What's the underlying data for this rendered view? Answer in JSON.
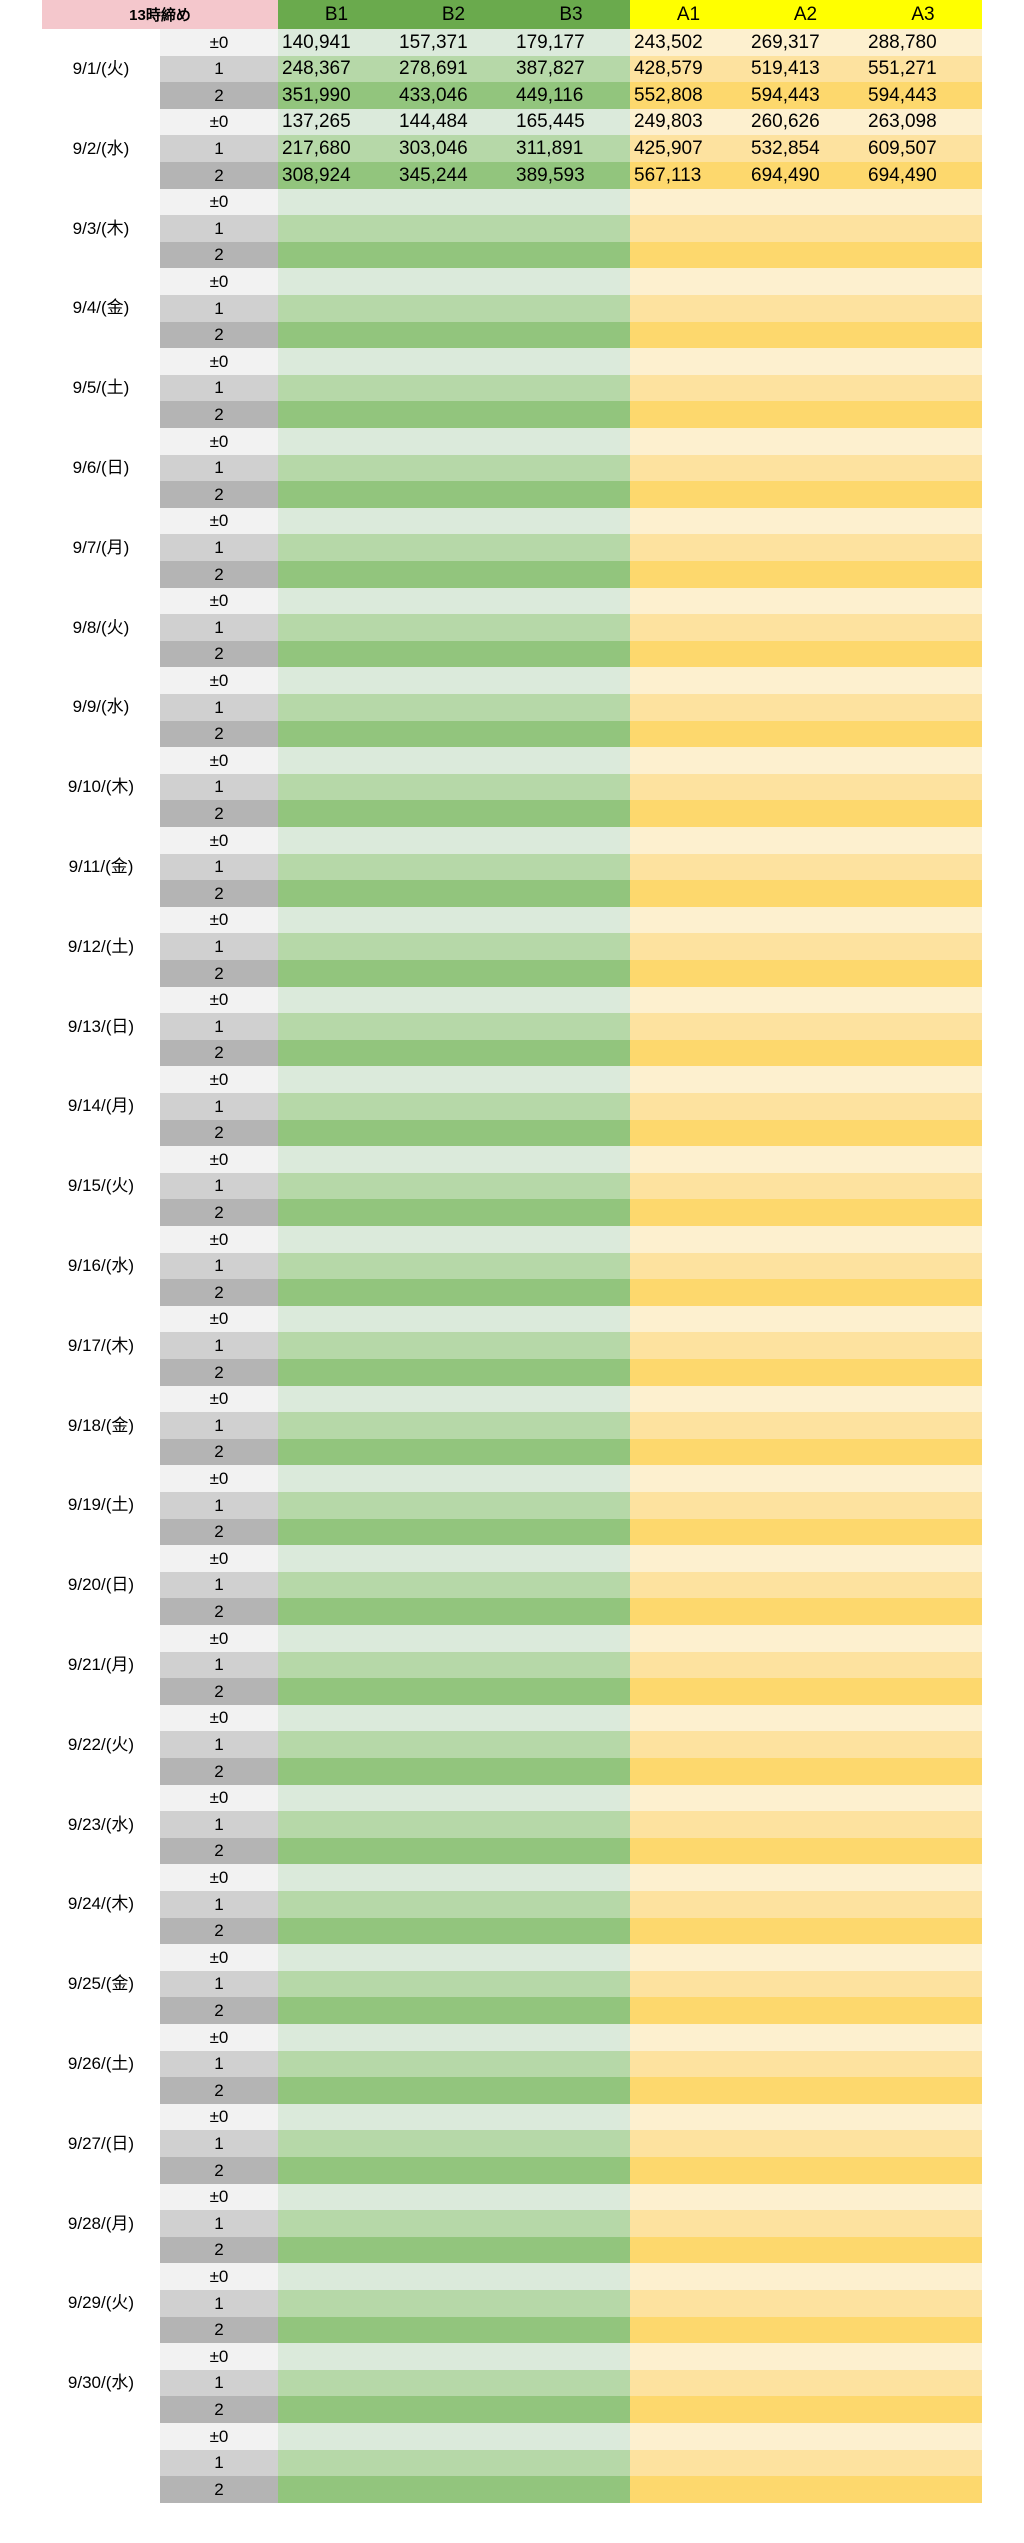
{
  "sheet": {
    "title": "13時締め",
    "headers": [
      "B1",
      "B2",
      "B3",
      "A1",
      "A2",
      "A3"
    ],
    "offsets": [
      "±0",
      "1",
      "2"
    ],
    "colors": {
      "title_bg": "#f4c7cc",
      "b_header_bg": "#6aaa4d",
      "a_header_bg": "#ffff00",
      "green_shades": [
        "#dbeadb",
        "#b6d8a8",
        "#92c57d"
      ],
      "yellow_shades": [
        "#fdf0cf",
        "#fde29f",
        "#fdd86d"
      ]
    },
    "dates": [
      {
        "label": "9/1/(火)",
        "rows": [
          [
            "140,941",
            "157,371",
            "179,177",
            "243,502",
            "269,317",
            "288,780"
          ],
          [
            "248,367",
            "278,691",
            "387,827",
            "428,579",
            "519,413",
            "551,271"
          ],
          [
            "351,990",
            "433,046",
            "449,116",
            "552,808",
            "594,443",
            "594,443"
          ]
        ]
      },
      {
        "label": "9/2/(水)",
        "rows": [
          [
            "137,265",
            "144,484",
            "165,445",
            "249,803",
            "260,626",
            "263,098"
          ],
          [
            "217,680",
            "303,046",
            "311,891",
            "425,907",
            "532,854",
            "609,507"
          ],
          [
            "308,924",
            "345,244",
            "389,593",
            "567,113",
            "694,490",
            "694,490"
          ]
        ]
      },
      {
        "label": "9/3/(木)",
        "rows": []
      },
      {
        "label": "9/4/(金)",
        "rows": []
      },
      {
        "label": "9/5/(土)",
        "rows": []
      },
      {
        "label": "9/6/(日)",
        "rows": []
      },
      {
        "label": "9/7/(月)",
        "rows": []
      },
      {
        "label": "9/8/(火)",
        "rows": []
      },
      {
        "label": "9/9/(水)",
        "rows": []
      },
      {
        "label": "9/10/(木)",
        "rows": []
      },
      {
        "label": "9/11/(金)",
        "rows": []
      },
      {
        "label": "9/12/(土)",
        "rows": []
      },
      {
        "label": "9/13/(日)",
        "rows": []
      },
      {
        "label": "9/14/(月)",
        "rows": []
      },
      {
        "label": "9/15/(火)",
        "rows": []
      },
      {
        "label": "9/16/(水)",
        "rows": []
      },
      {
        "label": "9/17/(木)",
        "rows": []
      },
      {
        "label": "9/18/(金)",
        "rows": []
      },
      {
        "label": "9/19/(土)",
        "rows": []
      },
      {
        "label": "9/20/(日)",
        "rows": []
      },
      {
        "label": "9/21/(月)",
        "rows": []
      },
      {
        "label": "9/22/(火)",
        "rows": []
      },
      {
        "label": "9/23/(水)",
        "rows": []
      },
      {
        "label": "9/24/(木)",
        "rows": []
      },
      {
        "label": "9/25/(金)",
        "rows": []
      },
      {
        "label": "9/26/(土)",
        "rows": []
      },
      {
        "label": "9/27/(日)",
        "rows": []
      },
      {
        "label": "9/28/(月)",
        "rows": []
      },
      {
        "label": "9/29/(火)",
        "rows": []
      },
      {
        "label": "9/30/(水)",
        "rows": []
      },
      {
        "label": "",
        "rows": []
      }
    ]
  }
}
